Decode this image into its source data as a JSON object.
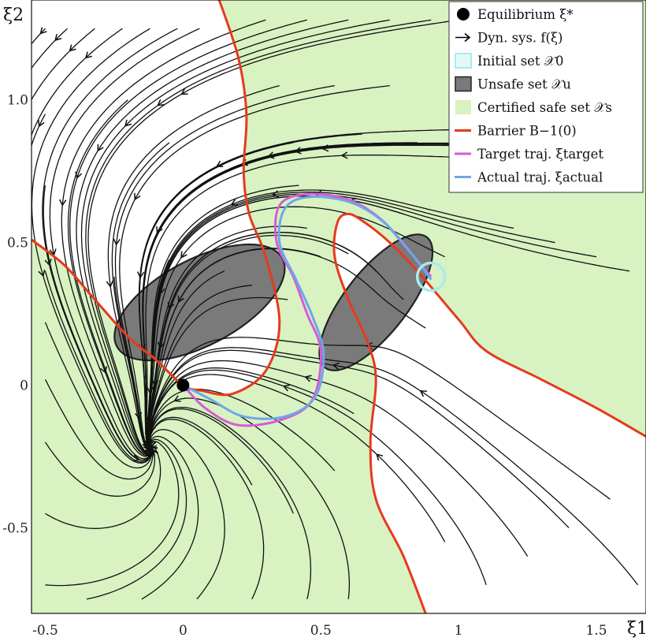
{
  "chart_data": {
    "type": "phase_portrait",
    "xlabel": "ξ1",
    "ylabel": "ξ2",
    "xlim": [
      -0.55,
      1.68
    ],
    "ylim": [
      -0.8,
      1.35
    ],
    "xticks": [
      {
        "value": -0.5,
        "label": "-0.5"
      },
      {
        "value": 0,
        "label": "0"
      },
      {
        "value": 0.5,
        "label": "0.5"
      },
      {
        "value": 1,
        "label": "1"
      },
      {
        "value": 1.5,
        "label": "1.5"
      }
    ],
    "yticks": [
      {
        "value": -0.5,
        "label": "-0.5"
      },
      {
        "value": 0,
        "label": "0"
      },
      {
        "value": 0.5,
        "label": "0.5"
      },
      {
        "value": 1.0,
        "label": "1.0"
      }
    ],
    "equilibrium": [
      0,
      0
    ],
    "legend": {
      "placement": "top-right",
      "entries": [
        {
          "key": "equilibrium",
          "label": "Equilibrium ξ*"
        },
        {
          "key": "dyn",
          "label": "Dyn. sys. f(ξ)"
        },
        {
          "key": "initial",
          "label": "Initial set 𝒳0"
        },
        {
          "key": "unsafe",
          "label": "Unsafe set 𝒳u"
        },
        {
          "key": "safe",
          "label": "Certified safe set 𝒳s"
        },
        {
          "key": "barrier",
          "label": "Barrier B−1(0)"
        },
        {
          "key": "target",
          "label": "Target traj. ξtarget"
        },
        {
          "key": "actual",
          "label": "Actual traj. ξactual"
        }
      ]
    },
    "unsafe_sets": [
      {
        "center": [
          0.06,
          0.29
        ],
        "semi_axes": [
          0.34,
          0.15
        ],
        "angle_deg": -28
      },
      {
        "center": [
          0.7,
          0.29
        ],
        "semi_axes": [
          0.3,
          0.11
        ],
        "angle_deg": -52
      }
    ],
    "initial_set": {
      "center": [
        0.9,
        0.38
      ],
      "radius": 0.05
    },
    "barrier_curves": [
      [
        [
          0.12,
          1.38
        ],
        [
          0.2,
          1.15
        ],
        [
          0.23,
          0.95
        ],
        [
          0.22,
          0.75
        ],
        [
          0.24,
          0.6
        ],
        [
          0.3,
          0.45
        ],
        [
          0.35,
          0.22
        ],
        [
          0.3,
          0.05
        ],
        [
          0.18,
          -0.03
        ],
        [
          0.07,
          -0.02
        ],
        [
          0.0,
          0.0
        ],
        [
          -0.1,
          0.09
        ],
        [
          -0.2,
          0.17
        ],
        [
          -0.32,
          0.3
        ],
        [
          -0.43,
          0.42
        ],
        [
          -0.55,
          0.51
        ]
      ],
      [
        [
          0.88,
          -0.8
        ],
        [
          0.8,
          -0.6
        ],
        [
          0.7,
          -0.4
        ],
        [
          0.68,
          -0.2
        ],
        [
          0.7,
          0.02
        ],
        [
          0.67,
          0.15
        ],
        [
          0.6,
          0.3
        ],
        [
          0.55,
          0.45
        ],
        [
          0.56,
          0.57
        ],
        [
          0.6,
          0.6
        ],
        [
          0.66,
          0.57
        ],
        [
          0.75,
          0.5
        ],
        [
          0.85,
          0.4
        ],
        [
          1.0,
          0.23
        ],
        [
          1.1,
          0.12
        ],
        [
          1.3,
          0.02
        ],
        [
          1.5,
          -0.08
        ],
        [
          1.68,
          -0.18
        ]
      ]
    ],
    "target_trajectory": [
      [
        0.9,
        0.38
      ],
      [
        0.82,
        0.47
      ],
      [
        0.72,
        0.58
      ],
      [
        0.6,
        0.65
      ],
      [
        0.45,
        0.67
      ],
      [
        0.35,
        0.63
      ],
      [
        0.34,
        0.5
      ],
      [
        0.4,
        0.38
      ],
      [
        0.45,
        0.25
      ],
      [
        0.5,
        0.12
      ],
      [
        0.47,
        -0.05
      ],
      [
        0.36,
        -0.12
      ],
      [
        0.2,
        -0.14
      ],
      [
        0.08,
        -0.08
      ],
      [
        0.0,
        0.0
      ]
    ],
    "actual_trajectory": [
      [
        0.9,
        0.37
      ],
      [
        0.83,
        0.46
      ],
      [
        0.73,
        0.57
      ],
      [
        0.61,
        0.64
      ],
      [
        0.46,
        0.66
      ],
      [
        0.37,
        0.62
      ],
      [
        0.35,
        0.5
      ],
      [
        0.41,
        0.37
      ],
      [
        0.47,
        0.24
      ],
      [
        0.51,
        0.11
      ],
      [
        0.48,
        -0.04
      ],
      [
        0.37,
        -0.11
      ],
      [
        0.22,
        -0.11
      ],
      [
        0.1,
        -0.05
      ],
      [
        0.0,
        0.0
      ]
    ],
    "streamline_seeds": [
      [
        -0.5,
        1.25
      ],
      [
        -0.42,
        1.25
      ],
      [
        -0.32,
        1.25
      ],
      [
        -0.22,
        1.25
      ],
      [
        -0.12,
        1.25
      ],
      [
        -0.02,
        1.25
      ],
      [
        0.06,
        1.25
      ],
      [
        -0.5,
        0.95
      ],
      [
        -0.5,
        0.7
      ],
      [
        -0.2,
        1.0
      ],
      [
        -0.05,
        0.85
      ],
      [
        0.3,
        1.28
      ],
      [
        0.45,
        1.28
      ],
      [
        0.6,
        1.28
      ],
      [
        0.75,
        1.28
      ],
      [
        0.9,
        1.28
      ],
      [
        1.0,
        1.28
      ],
      [
        0.35,
        1.05
      ],
      [
        0.55,
        1.05
      ],
      [
        0.75,
        1.05
      ],
      [
        0.4,
        0.85
      ],
      [
        0.65,
        0.88
      ],
      [
        0.85,
        0.85
      ],
      [
        1.15,
        0.9
      ],
      [
        1.25,
        0.85
      ],
      [
        1.35,
        0.85
      ],
      [
        1.45,
        0.85
      ],
      [
        1.55,
        0.85
      ],
      [
        1.62,
        0.8
      ],
      [
        1.2,
        0.55
      ],
      [
        1.35,
        0.5
      ],
      [
        1.5,
        0.45
      ],
      [
        1.62,
        0.4
      ],
      [
        1.1,
        -0.7
      ],
      [
        1.25,
        -0.6
      ],
      [
        1.4,
        -0.5
      ],
      [
        1.55,
        -0.4
      ],
      [
        1.65,
        -0.7
      ],
      [
        0.95,
        -0.55
      ],
      [
        -0.5,
        -0.7
      ],
      [
        -0.5,
        -0.45
      ],
      [
        -0.5,
        -0.2
      ],
      [
        -0.5,
        0.02
      ],
      [
        -0.5,
        0.22
      ],
      [
        -0.5,
        0.4
      ],
      [
        -0.35,
        -0.75
      ],
      [
        -0.15,
        -0.75
      ],
      [
        0.05,
        -0.75
      ],
      [
        0.25,
        -0.75
      ],
      [
        0.45,
        -0.75
      ],
      [
        0.6,
        -0.75
      ],
      [
        0.4,
        -0.45
      ],
      [
        0.55,
        -0.3
      ],
      [
        0.25,
        -0.35
      ],
      [
        0.62,
        -0.1
      ],
      [
        -0.25,
        0.38
      ],
      [
        -0.15,
        0.42
      ],
      [
        -0.05,
        0.44
      ],
      [
        0.05,
        0.43
      ],
      [
        0.15,
        0.4
      ],
      [
        0.25,
        0.35
      ],
      [
        0.5,
        0.45
      ],
      [
        0.6,
        0.46
      ],
      [
        0.7,
        0.4
      ],
      [
        0.8,
        0.3
      ],
      [
        0.88,
        0.2
      ],
      [
        0.42,
        0.7
      ],
      [
        0.45,
        0.55
      ],
      [
        0.38,
        0.3
      ],
      [
        0.8,
        0.6
      ],
      [
        0.95,
        0.45
      ]
    ]
  },
  "colors": {
    "safe": "#d8f2c2",
    "unsafe": "#7a7a7a",
    "barrier": "#e63a1e",
    "target": "#d65cd6",
    "actual": "#6ea8e6",
    "initial": "#a8ecec",
    "stream": "#111111"
  }
}
